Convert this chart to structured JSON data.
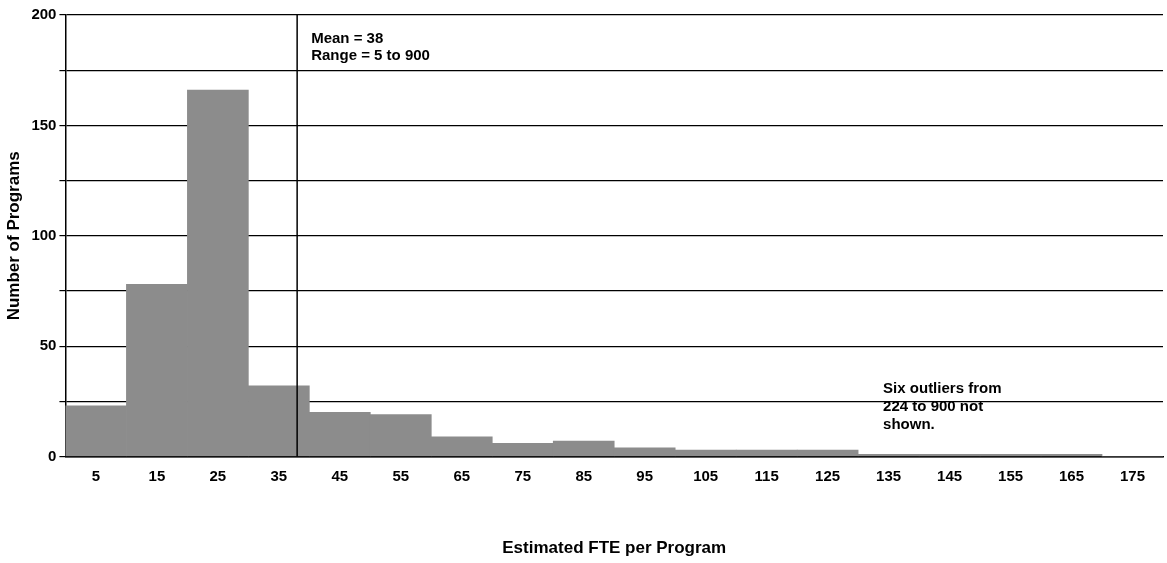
{
  "chart_data": {
    "type": "histogram",
    "xlabel": "Estimated FTE per Program",
    "ylabel": "Number of Programs",
    "bins": [
      0,
      10,
      20,
      30,
      40,
      50,
      60,
      70,
      80,
      90,
      100,
      110,
      120,
      130,
      140,
      150,
      160,
      170,
      180
    ],
    "values": [
      23,
      78,
      166,
      32,
      20,
      19,
      9,
      6,
      7,
      4,
      3,
      3,
      3,
      1,
      1,
      1,
      1,
      0
    ],
    "color": "#8c8c8c",
    "xlim": [
      0,
      180
    ],
    "xticks": [
      5,
      15,
      25,
      35,
      45,
      55,
      65,
      75,
      85,
      95,
      105,
      115,
      125,
      135,
      145,
      155,
      165,
      175
    ],
    "ylim": [
      0,
      200
    ],
    "yticks": [
      0,
      {
        "value": 25,
        "label": null
      },
      50,
      {
        "value": 75,
        "label": null
      },
      100,
      {
        "value": 125,
        "label": null
      },
      150,
      {
        "value": 175,
        "label": null
      },
      200
    ],
    "grid": "y",
    "ref_lines": [
      {
        "axis": "x",
        "value": 38,
        "label": "Mean = 38",
        "color": "#000000"
      }
    ],
    "annotations": [
      "Range = 5 to 900",
      "Six outliers from 224 to 900 not shown."
    ]
  }
}
